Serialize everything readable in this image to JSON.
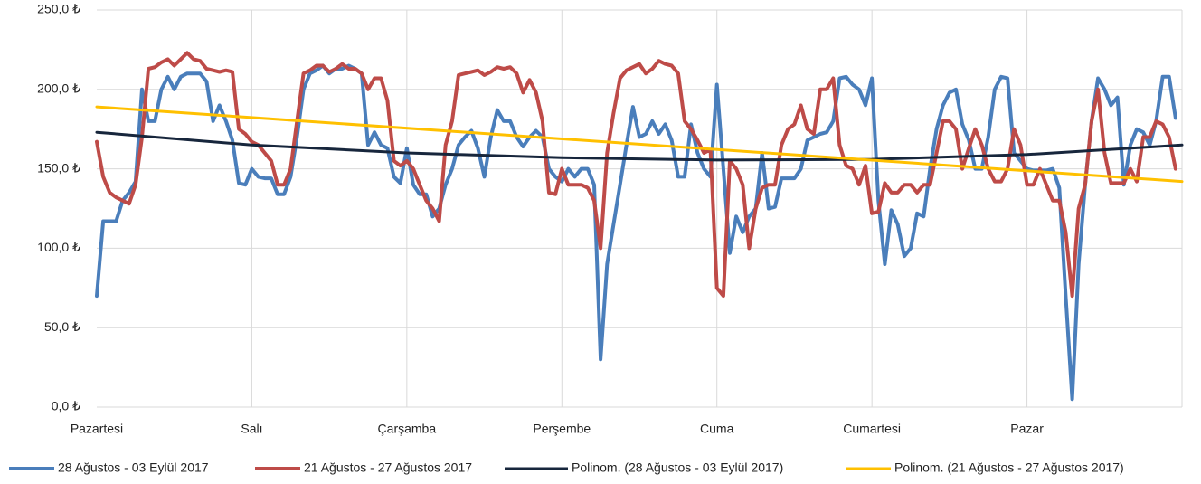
{
  "chart_data": {
    "type": "line",
    "x": [
      0,
      1,
      2,
      3,
      4,
      5,
      6,
      7,
      8,
      9,
      10,
      11,
      12,
      13,
      14,
      15,
      16,
      17,
      18,
      19,
      20,
      21,
      22,
      23,
      24,
      25,
      26,
      27,
      28,
      29,
      30,
      31,
      32,
      33,
      34,
      35,
      36,
      37,
      38,
      39,
      40,
      41,
      42,
      43,
      44,
      45,
      46,
      47,
      48,
      49,
      50,
      51,
      52,
      53,
      54,
      55,
      56,
      57,
      58,
      59,
      60,
      61,
      62,
      63,
      64,
      65,
      66,
      67,
      68,
      69,
      70,
      71,
      72,
      73,
      74,
      75,
      76,
      77,
      78,
      79,
      80,
      81,
      82,
      83,
      84,
      85,
      86,
      87,
      88,
      89,
      90,
      91,
      92,
      93,
      94,
      95,
      96,
      97,
      98,
      99,
      100,
      101,
      102,
      103,
      104,
      105,
      106,
      107,
      108,
      109,
      110,
      111,
      112,
      113,
      114,
      115,
      116,
      117,
      118,
      119,
      120,
      121,
      122,
      123,
      124,
      125,
      126,
      127,
      128,
      129,
      130,
      131,
      132,
      133,
      134,
      135,
      136,
      137,
      138,
      139,
      140,
      141,
      142,
      143,
      144,
      145,
      146,
      147,
      148,
      149,
      150,
      151,
      152,
      153,
      154,
      155,
      156,
      157,
      158,
      159,
      160,
      161,
      162,
      163,
      164,
      165,
      166,
      167
    ],
    "series": [
      {
        "name": "28 Ağustos - 03 Eylül 2017",
        "color": "#4a7ebb",
        "width": 4,
        "values": [
          70,
          117,
          117,
          117,
          130,
          135,
          142,
          200,
          180,
          180,
          200,
          208,
          200,
          208,
          210,
          210,
          210,
          205,
          180,
          190,
          180,
          168,
          141,
          140,
          150,
          145,
          144,
          144,
          134,
          134,
          145,
          170,
          200,
          210,
          212,
          215,
          210,
          213,
          213,
          215,
          213,
          210,
          165,
          173,
          165,
          163,
          145,
          141,
          163,
          140,
          134,
          134,
          120,
          125,
          140,
          150,
          165,
          170,
          174,
          163,
          145,
          170,
          187,
          180,
          180,
          170,
          164,
          170,
          174,
          170,
          150,
          145,
          142,
          150,
          145,
          150,
          150,
          140,
          30,
          90,
          115,
          140,
          165,
          189,
          170,
          172,
          180,
          172,
          178,
          168,
          145,
          145,
          178,
          160,
          150,
          145,
          203,
          150,
          97,
          120,
          110,
          120,
          125,
          160,
          125,
          126,
          144,
          144,
          144,
          150,
          168,
          170,
          172,
          173,
          180,
          207,
          208,
          203,
          200,
          190,
          207,
          130,
          90,
          124,
          115,
          95,
          100,
          122,
          120,
          150,
          175,
          190,
          198,
          200,
          178,
          168,
          150,
          150,
          170,
          200,
          208,
          207,
          160,
          155,
          150,
          149,
          149,
          149,
          150,
          138,
          70,
          5,
          90,
          140,
          180,
          207,
          200,
          190,
          195,
          140,
          165,
          175,
          173,
          165,
          180,
          208,
          208,
          182
        ]
      },
      {
        "name": "21 Ağustos - 27 Ağustos 2017",
        "color": "#be4b48",
        "width": 4,
        "values": [
          167,
          145,
          135,
          132,
          130,
          128,
          140,
          170,
          213,
          214,
          217,
          219,
          215,
          219,
          223,
          219,
          218,
          213,
          212,
          211,
          212,
          211,
          175,
          172,
          167,
          165,
          160,
          155,
          140,
          140,
          150,
          180,
          210,
          212,
          215,
          215,
          211,
          213,
          216,
          213,
          213,
          210,
          200,
          207,
          207,
          193,
          155,
          152,
          155,
          150,
          140,
          130,
          125,
          117,
          165,
          180,
          209,
          210,
          211,
          212,
          209,
          211,
          214,
          213,
          214,
          210,
          198,
          206,
          198,
          180,
          135,
          134,
          150,
          140,
          140,
          140,
          138,
          130,
          100,
          160,
          185,
          207,
          212,
          214,
          216,
          210,
          213,
          218,
          216,
          215,
          210,
          180,
          175,
          168,
          160,
          162,
          75,
          70,
          155,
          150,
          140,
          100,
          125,
          138,
          140,
          140,
          165,
          175,
          178,
          190,
          175,
          172,
          200,
          200,
          207,
          165,
          152,
          150,
          140,
          152,
          122,
          123,
          141,
          135,
          135,
          140,
          140,
          135,
          140,
          140,
          160,
          180,
          180,
          175,
          150,
          163,
          175,
          165,
          150,
          142,
          142,
          150,
          175,
          165,
          140,
          140,
          150,
          140,
          130,
          130,
          110,
          70,
          125,
          140,
          180,
          200,
          160,
          141,
          141,
          141,
          150,
          142,
          170,
          170,
          180,
          178,
          170,
          150
        ]
      },
      {
        "name": "Polinom. (28 Ağustos - 03 Eylül 2017)",
        "color": "#17263c",
        "width": 3,
        "x": [
          0,
          24,
          48,
          72,
          96,
          120,
          144,
          168
        ],
        "values": [
          173,
          165,
          160,
          157,
          155.5,
          156,
          159,
          165
        ]
      },
      {
        "name": "Polinom. (21 Ağustos - 27 Ağustos 2017)",
        "color": "#ffc000",
        "width": 3,
        "x": [
          0,
          168
        ],
        "values": [
          189,
          142
        ]
      }
    ],
    "xlim": [
      0,
      168
    ],
    "xticks": [
      {
        "value": 0,
        "label": "Pazartesi"
      },
      {
        "value": 24,
        "label": "Salı"
      },
      {
        "value": 48,
        "label": "Çarşamba"
      },
      {
        "value": 72,
        "label": "Perşembe"
      },
      {
        "value": 96,
        "label": "Cuma"
      },
      {
        "value": 120,
        "label": "Cumartesi"
      },
      {
        "value": 144,
        "label": "Pazar"
      }
    ],
    "ylim": [
      0,
      250
    ],
    "yticks": [
      {
        "value": 0,
        "label": "0,0 ₺"
      },
      {
        "value": 50,
        "label": "50,0 ₺"
      },
      {
        "value": 100,
        "label": "100,0 ₺"
      },
      {
        "value": 150,
        "label": "150,0 ₺"
      },
      {
        "value": 200,
        "label": "200,0 ₺"
      },
      {
        "value": 250,
        "label": "250,0 ₺"
      }
    ],
    "grid": true,
    "legend": "bottom"
  }
}
